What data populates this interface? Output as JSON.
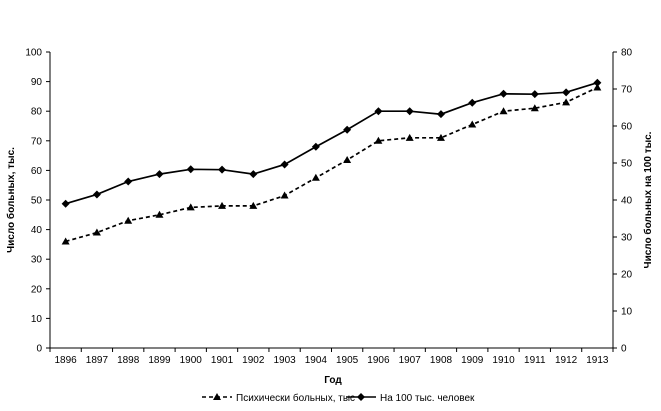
{
  "chart_data": {
    "type": "line",
    "xlabel": "Год",
    "ylabel_left": "Число больных, тыс.",
    "ylabel_right": "Число больных на 100 тыс.",
    "x": [
      "1896",
      "1897",
      "1898",
      "1899",
      "1900",
      "1901",
      "1902",
      "1903",
      "1904",
      "1905",
      "1906",
      "1907",
      "1908",
      "1909",
      "1910",
      "1911",
      "1912",
      "1913"
    ],
    "ylim_left": [
      0,
      100
    ],
    "yticks_left": [
      0,
      10,
      20,
      30,
      40,
      50,
      60,
      70,
      80,
      90,
      100
    ],
    "ylim_right": [
      0,
      80
    ],
    "yticks_right": [
      0,
      10,
      20,
      30,
      40,
      50,
      60,
      70,
      80
    ],
    "grid": false,
    "legend_position": "bottom",
    "series": [
      {
        "name": "Психически больных, тыс",
        "axis": "left",
        "style": "dashed",
        "marker": "triangle",
        "color": "#000000",
        "values": [
          36,
          39,
          43,
          45,
          47.5,
          48,
          48,
          51.5,
          57.5,
          63.5,
          70,
          71,
          71,
          75.5,
          80,
          81,
          83,
          88
        ]
      },
      {
        "name": "На 100 тыс. человек",
        "axis": "right",
        "style": "solid",
        "marker": "diamond",
        "color": "#000000",
        "values": [
          39,
          41.5,
          45,
          47,
          48.3,
          48.2,
          47,
          49.6,
          54.4,
          59,
          64,
          64,
          63.2,
          66.3,
          68.7,
          68.6,
          69.1,
          71.7
        ]
      }
    ]
  }
}
